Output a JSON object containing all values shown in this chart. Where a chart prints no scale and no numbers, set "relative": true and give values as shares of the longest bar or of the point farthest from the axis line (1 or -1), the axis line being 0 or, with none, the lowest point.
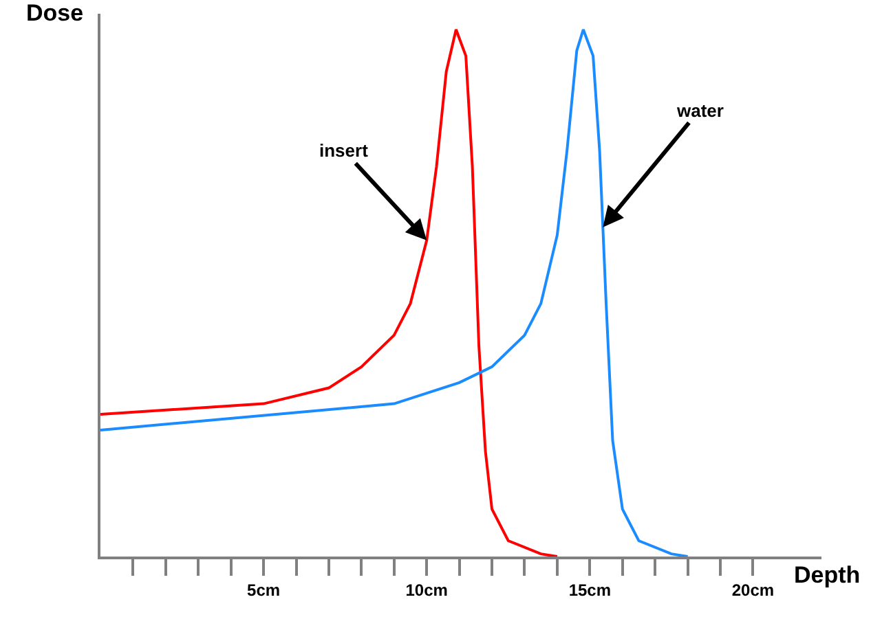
{
  "chart_data": {
    "type": "line",
    "relative": true,
    "xlabel": "Depth",
    "ylabel": "Dose",
    "xlim": [
      0,
      22.1
    ],
    "xticks": [
      {
        "value": 1,
        "label": null
      },
      {
        "value": 2,
        "label": null
      },
      {
        "value": 3,
        "label": null
      },
      {
        "value": 4,
        "label": null
      },
      {
        "value": 5,
        "label": "5cm"
      },
      {
        "value": 6,
        "label": null
      },
      {
        "value": 7,
        "label": null
      },
      {
        "value": 8,
        "label": null
      },
      {
        "value": 9,
        "label": null
      },
      {
        "value": 10,
        "label": "10cm"
      },
      {
        "value": 11,
        "label": null
      },
      {
        "value": 12,
        "label": null
      },
      {
        "value": 13,
        "label": null
      },
      {
        "value": 14,
        "label": null
      },
      {
        "value": 15,
        "label": "15cm"
      },
      {
        "value": 16,
        "label": null
      },
      {
        "value": 17,
        "label": null
      },
      {
        "value": 18,
        "label": null
      },
      {
        "value": 19,
        "label": null
      },
      {
        "value": 20,
        "label": "20cm"
      }
    ],
    "marker": "none",
    "line_style": "solid",
    "series": [
      {
        "color": "#ff0000",
        "x": [
          0,
          5,
          7,
          8,
          9,
          9.5,
          10,
          10.3,
          10.6,
          10.9,
          11.2,
          11.4,
          11.6,
          11.8,
          12,
          12.5,
          13.5,
          14
        ],
        "values": [
          0.27,
          0.29,
          0.32,
          0.36,
          0.42,
          0.48,
          0.6,
          0.74,
          0.92,
          1.0,
          0.95,
          0.74,
          0.4,
          0.2,
          0.09,
          0.03,
          0.005,
          0
        ]
      },
      {
        "color": "#1a8cff",
        "x": [
          0,
          9,
          11,
          12,
          13,
          13.5,
          14,
          14.3,
          14.6,
          14.8,
          15.1,
          15.3,
          15.5,
          15.7,
          16,
          16.5,
          17.5,
          18
        ],
        "values": [
          0.24,
          0.29,
          0.33,
          0.36,
          0.42,
          0.48,
          0.61,
          0.77,
          0.96,
          1.0,
          0.95,
          0.77,
          0.48,
          0.22,
          0.09,
          0.03,
          0.005,
          0
        ]
      }
    ],
    "annotations": [
      {
        "text": "insert",
        "x": 10,
        "y": 0.6
      },
      {
        "text": "water",
        "x": 15.4,
        "y": 0.625
      }
    ]
  }
}
